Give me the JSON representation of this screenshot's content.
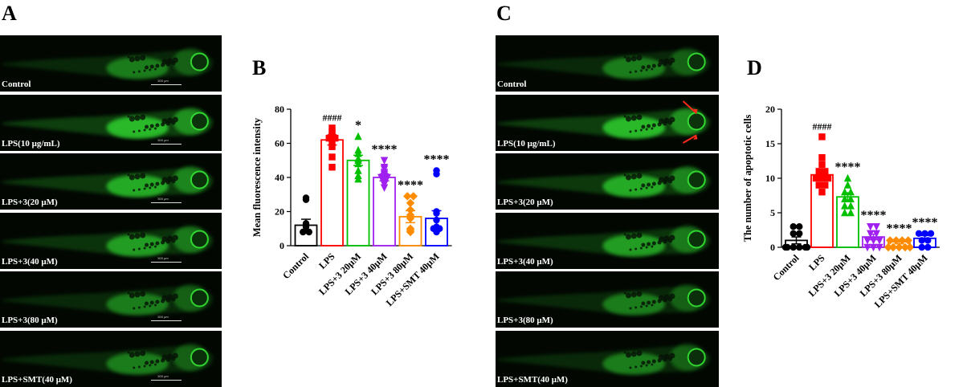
{
  "panel_letters": {
    "a": "A",
    "b": "B",
    "c": "C",
    "d": "D"
  },
  "panel_a": {
    "labels": [
      "Control",
      "LPS(10 μg/mL)",
      "LPS+3(20 μM)",
      "LPS+3(40 μM)",
      "LPS+3(80 μM)",
      "LPS+SMT(40 μM)"
    ],
    "scale_text": "500 μm"
  },
  "panel_c": {
    "labels": [
      "Control",
      "LPS(10 μg/mL)",
      "LPS+3(20 μM)",
      "LPS+3(40 μM)",
      "LPS+3(80 μM)",
      "LPS+SMT(40 μM)"
    ]
  },
  "colors": {
    "fluorescence": "#33e233",
    "arrow": "#ff2a1a"
  },
  "chart_data": [
    {
      "type": "bar",
      "ylabel": "Mean fluorescence intensity",
      "ylim": [
        0,
        80
      ],
      "yticks": [
        0,
        20,
        40,
        60,
        80
      ],
      "categories": [
        "Control",
        "LPS",
        "LPS+3 20μM",
        "LPS+3 40μM",
        "LPS+3 80μM",
        "LPS+SMT 40μM"
      ],
      "means": [
        12,
        62,
        50,
        40,
        17,
        16
      ],
      "errors": [
        3.5,
        3,
        3,
        2,
        3.5,
        4.5
      ],
      "colors": [
        "#000000",
        "#ff0000",
        "#00c000",
        "#a020f0",
        "#ff8c00",
        "#0000ff"
      ],
      "markers": [
        "circle",
        "square",
        "triangle-up",
        "triangle-down",
        "diamond",
        "circle"
      ],
      "annotations": [
        "",
        "####",
        "*",
        "****",
        "****",
        "****"
      ],
      "points": [
        [
          27,
          28,
          13,
          12,
          11,
          9,
          8,
          8
        ],
        [
          69,
          67,
          65,
          64,
          63,
          63,
          61,
          58,
          52,
          46
        ],
        [
          64,
          56,
          54,
          51,
          50,
          48,
          44,
          41,
          39
        ],
        [
          50,
          46,
          45,
          43,
          42,
          41,
          40,
          40,
          39,
          38,
          36,
          34
        ],
        [
          29,
          29,
          25,
          21,
          18,
          16,
          10,
          9,
          8
        ],
        [
          44,
          42,
          20,
          19,
          15,
          11,
          10,
          10,
          9,
          8
        ]
      ]
    },
    {
      "type": "bar",
      "ylabel": "The number of apoptotic cells",
      "ylim": [
        0,
        20
      ],
      "yticks": [
        0,
        5,
        10,
        15,
        20
      ],
      "categories": [
        "Control",
        "LPS",
        "LPS+3 20μM",
        "LPS+3 40μM",
        "LPS+3 80μM",
        "LPS+SMT 40μM"
      ],
      "means": [
        1,
        10.5,
        7.3,
        1.5,
        0.8,
        1.3
      ],
      "errors": [
        0.5,
        0.6,
        0.6,
        0.4,
        0.3,
        0.4
      ],
      "colors": [
        "#000000",
        "#ff0000",
        "#00c000",
        "#a020f0",
        "#ff8c00",
        "#0000ff"
      ],
      "markers": [
        "circle",
        "square",
        "triangle-up",
        "triangle-down",
        "diamond",
        "circle"
      ],
      "annotations": [
        "",
        "####",
        "****",
        "****",
        "****",
        "****"
      ],
      "points": [
        [
          3,
          3,
          2,
          2,
          0,
          0,
          0,
          0,
          0,
          0
        ],
        [
          16,
          13,
          12,
          11,
          11,
          10,
          10,
          10,
          9,
          9,
          8
        ],
        [
          10,
          9,
          8,
          8,
          7,
          7,
          6,
          6,
          5,
          5
        ],
        [
          3,
          3,
          2,
          2,
          1,
          1,
          1,
          0,
          0,
          0
        ],
        [
          1,
          1,
          1,
          1,
          0,
          0,
          0,
          0,
          0
        ],
        [
          2,
          2,
          2,
          1,
          1,
          0,
          0
        ]
      ]
    }
  ]
}
